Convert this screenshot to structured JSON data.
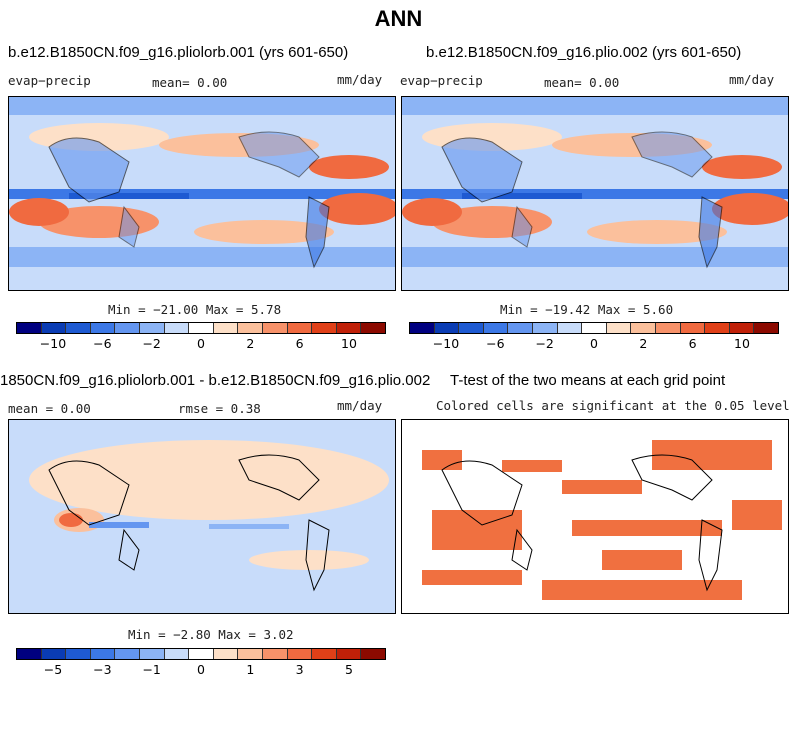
{
  "season": "ANN",
  "panels": {
    "p1": {
      "title": "b.e12.B1850CN.f09_g16.pliolorb.001 (yrs 601-650)",
      "var": "evap−precip",
      "mean": "mean=    0.00",
      "units": "mm/day",
      "minmax": "Min = −21.00 Max =    5.78"
    },
    "p2": {
      "title": "b.e12.B1850CN.f09_g16.plio.002 (yrs 601-650)",
      "var": "evap−precip",
      "mean": "mean=    0.00",
      "units": "mm/day",
      "minmax": "Min = −19.42 Max =    5.60"
    },
    "p3": {
      "title": "1850CN.f09_g16.pliolorb.001 - b.e12.B1850CN.f09_g16.plio.002",
      "mean": "mean =   0.00",
      "rmse": "rmse =   0.38",
      "units": "mm/day",
      "minmax": "Min = −2.80 Max =    3.02"
    },
    "p4": {
      "title": "T-test of the two means at each grid point",
      "note": "Colored cells are significant at the 0.05 level"
    }
  },
  "colorbars": {
    "main": {
      "colors": [
        "#000080",
        "#0a3cb4",
        "#1e5ad2",
        "#3c78e6",
        "#6496f0",
        "#8cb4f5",
        "#c8dcfa",
        "#ffffff",
        "#fde0c8",
        "#fbc09c",
        "#f7926a",
        "#f06a40",
        "#e04018",
        "#c02008",
        "#8c0a00"
      ],
      "ticks": [
        "−10",
        "−6",
        "−2",
        "0",
        "2",
        "6",
        "10"
      ]
    },
    "diff": {
      "colors": [
        "#000080",
        "#0a3cb4",
        "#1e5ad2",
        "#3c78e6",
        "#6496f0",
        "#8cb4f5",
        "#c8dcfa",
        "#ffffff",
        "#fde0c8",
        "#fbc09c",
        "#f7926a",
        "#f06a40",
        "#e04018",
        "#c02008",
        "#8c0a00"
      ],
      "ticks": [
        "−5",
        "−3",
        "−1",
        "0",
        "1",
        "3",
        "5"
      ]
    }
  },
  "colors": {
    "ttest": "#f07040",
    "ocean_light": "#c8dcfa",
    "land_pos": "#fde0c8"
  }
}
